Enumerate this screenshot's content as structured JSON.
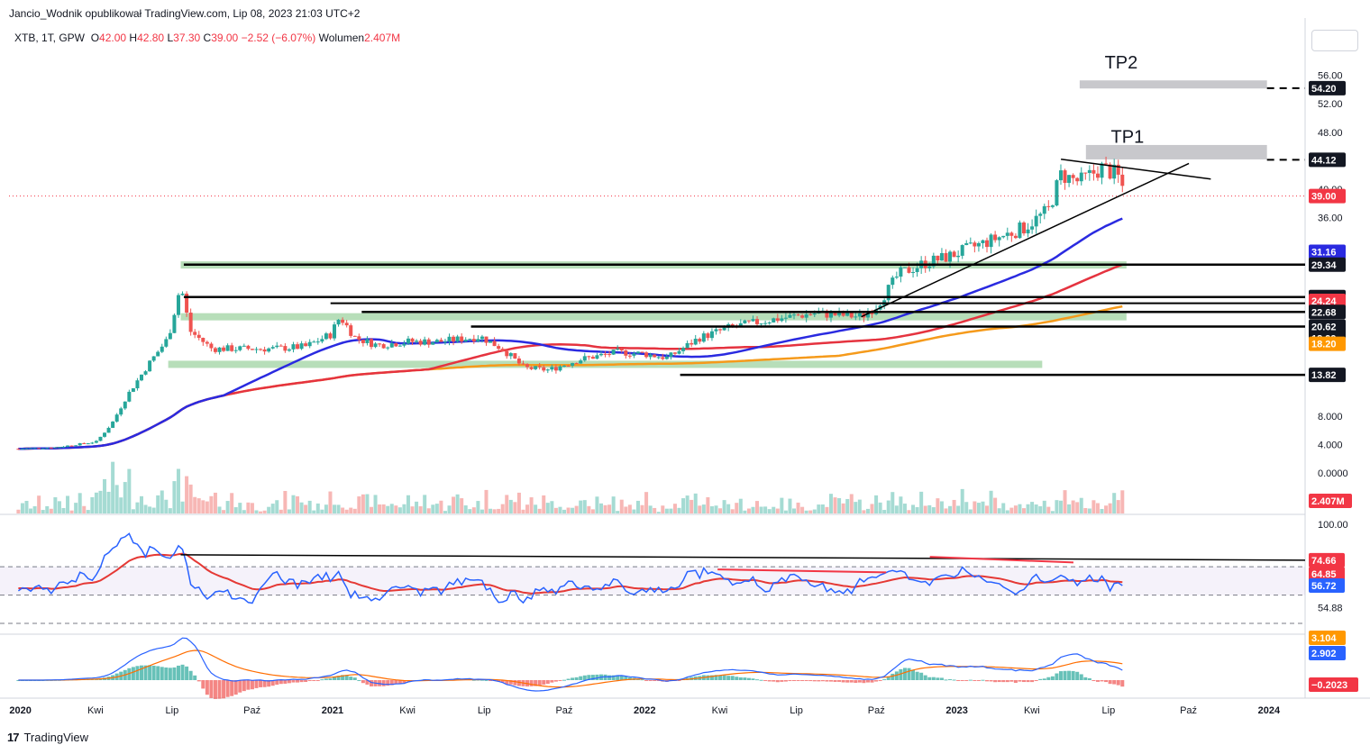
{
  "header": {
    "publish_line": "Jancio_Wodnik opublikował TradingView.com, Lip 08, 2023 21:03 UTC+2"
  },
  "legend": {
    "symbol": "XTB, 1T, GPW",
    "o_label": "O",
    "o_value": "42.00",
    "h_label": "H",
    "h_value": "42.80",
    "l_label": "L",
    "l_value": "37.30",
    "c_label": "C",
    "c_value": "39.00",
    "change": "−2.52 (−6.07%)",
    "vol_label": "Wolumen",
    "vol_value": "2.407M"
  },
  "footer": {
    "brand": "TradingView"
  },
  "colors": {
    "up": "#26a69a",
    "down": "#ef5350",
    "ma_blue": "#2a2ae0",
    "ma_red": "#e5333f",
    "ma_orange": "#f59a1b",
    "zone_green": "#a5d6a7",
    "zone_grey": "#c8c8cc",
    "rsi_line": "#2962ff",
    "rsi_ma": "#e53935",
    "macd": "#2962ff",
    "signal": "#ff6d00"
  },
  "chart_data": [
    {
      "type": "candlestick",
      "title": "XTB, 1T, GPW",
      "x_tick_labels": [
        "2020",
        "Kwi",
        "Lip",
        "Paź",
        "2021",
        "Kwi",
        "Lip",
        "Paź",
        "2022",
        "Kwi",
        "Lip",
        "Paź",
        "2023",
        "Kwi",
        "Lip",
        "Paź",
        "2024"
      ],
      "y_tick_labels": [
        "0.0000",
        "4.000",
        "8.000",
        "36.00",
        "40.00",
        "48.00",
        "52.00",
        "56.00"
      ],
      "ylim": [
        -2,
        60
      ],
      "price_path": [
        [
          2020.0,
          3.4
        ],
        [
          2020.12,
          3.6
        ],
        [
          2020.25,
          4.4
        ],
        [
          2020.3,
          7.0
        ],
        [
          2020.35,
          11.0
        ],
        [
          2020.42,
          15.5
        ],
        [
          2020.48,
          19.0
        ],
        [
          2020.52,
          26.5
        ],
        [
          2020.55,
          20.0
        ],
        [
          2020.62,
          17.5
        ],
        [
          2020.72,
          17.5
        ],
        [
          2020.82,
          17.5
        ],
        [
          2020.92,
          17.8
        ],
        [
          2021.0,
          19.5
        ],
        [
          2021.03,
          22.0
        ],
        [
          2021.08,
          19.0
        ],
        [
          2021.15,
          18.0
        ],
        [
          2021.25,
          18.5
        ],
        [
          2021.35,
          18.5
        ],
        [
          2021.48,
          19.2
        ],
        [
          2021.55,
          17.5
        ],
        [
          2021.62,
          14.8
        ],
        [
          2021.7,
          14.5
        ],
        [
          2021.8,
          16.0
        ],
        [
          2021.92,
          17.0
        ],
        [
          2022.0,
          16.8
        ],
        [
          2022.08,
          16.2
        ],
        [
          2022.18,
          19.0
        ],
        [
          2022.28,
          20.5
        ],
        [
          2022.4,
          21.5
        ],
        [
          2022.55,
          22.5
        ],
        [
          2022.7,
          22.0
        ],
        [
          2022.75,
          23.5
        ],
        [
          2022.82,
          28.0
        ],
        [
          2022.9,
          29.5
        ],
        [
          2022.98,
          30.5
        ],
        [
          2023.1,
          32.5
        ],
        [
          2023.22,
          34.5
        ],
        [
          2023.3,
          37.0
        ],
        [
          2023.34,
          42.0
        ],
        [
          2023.4,
          41.0
        ],
        [
          2023.47,
          43.0
        ],
        [
          2023.52,
          42.0
        ],
        [
          2023.55,
          39.0
        ]
      ],
      "horizontal_levels": [
        54.2,
        44.12,
        29.34,
        24.78,
        24.24,
        22.68,
        20.62,
        18.99,
        18.2,
        13.82
      ],
      "moving_averages": [
        {
          "name": "",
          "color": "blue",
          "last": 31.16
        },
        {
          "name": "",
          "color": "red",
          "last": 24.24
        },
        {
          "name": "",
          "color": "orange",
          "last": 18.2
        }
      ],
      "annotations": [
        "TP2",
        "TP1"
      ],
      "price_tags": [
        {
          "text": "54.20",
          "bg": "#131722"
        },
        {
          "text": "44.12",
          "bg": "#131722"
        },
        {
          "text": "39.00",
          "bg": "#f23645"
        },
        {
          "text": "31.16",
          "bg": "#2a2ae0"
        },
        {
          "text": "29.34",
          "bg": "#131722"
        },
        {
          "text": "24.78",
          "bg": "#131722"
        },
        {
          "text": "24.24",
          "bg": "#f23645"
        },
        {
          "text": "22.68",
          "bg": "#131722"
        },
        {
          "text": "20.62",
          "bg": "#131722"
        },
        {
          "text": "18.99",
          "bg": "#131722"
        },
        {
          "text": "18.20",
          "bg": "#ff9800"
        },
        {
          "text": "13.82",
          "bg": "#131722"
        },
        {
          "text": "2.407M",
          "bg": "#f23645"
        }
      ],
      "last_volume": "2.407M"
    },
    {
      "type": "line",
      "title": "",
      "y_tick_labels": [
        "100.00",
        "74.66",
        "54.88",
        "54.88"
      ],
      "ylim": [
        30,
        100
      ],
      "series": [
        {
          "name": "",
          "values_last": 56.72
        },
        {
          "name": "",
          "values_last": 64.85
        }
      ],
      "price_tags": [
        {
          "text": "74.66",
          "bg": "#f23645"
        },
        {
          "text": "64.85",
          "bg": "#f23645"
        },
        {
          "text": "56.72",
          "bg": "#2962ff"
        }
      ],
      "bands": [
        70,
        50
      ]
    },
    {
      "type": "line",
      "title": "",
      "series": [
        {
          "name": "",
          "values_last": 2.902
        },
        {
          "name": "",
          "values_last": 3.104
        },
        {
          "name": "",
          "values_last": -0.2023
        }
      ],
      "price_tags": [
        {
          "text": "3.104",
          "bg": "#ff9800"
        },
        {
          "text": "2.902",
          "bg": "#2962ff"
        },
        {
          "text": "−0.2023",
          "bg": "#f23645"
        }
      ]
    }
  ]
}
